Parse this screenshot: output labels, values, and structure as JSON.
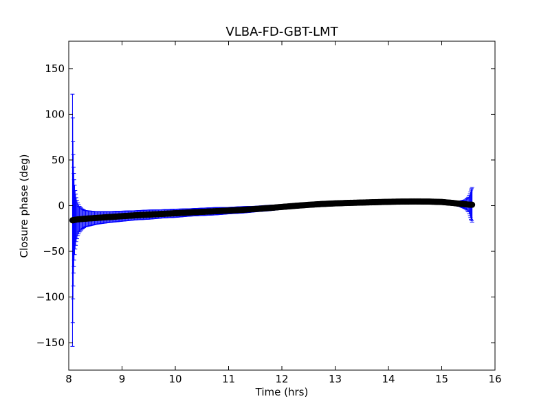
{
  "chart_data": {
    "type": "scatter",
    "title": "VLBA-FD-GBT-LMT",
    "xlabel": "Time (hrs)",
    "ylabel": "Closure phase (deg)",
    "xlim": [
      8,
      16
    ],
    "ylim": [
      -180,
      180
    ],
    "xticks": [
      8,
      9,
      10,
      11,
      12,
      13,
      14,
      15,
      16
    ],
    "yticks": [
      -150,
      -100,
      -50,
      0,
      50,
      100,
      150
    ],
    "ytick_labels": [
      "−150",
      "−100",
      "−50",
      "0",
      "50",
      "100",
      "150"
    ],
    "grid": false,
    "series": [
      {
        "marker_color": "#000000",
        "errorbar_color": "#0000ff",
        "x": [
          8.07,
          8.08,
          8.09,
          8.1,
          8.12,
          8.14,
          8.17,
          8.2,
          8.25,
          8.3,
          8.4,
          8.5,
          8.6,
          8.75,
          9.0,
          9.25,
          9.5,
          9.75,
          10.0,
          10.25,
          10.5,
          10.75,
          11.0,
          11.25,
          11.5,
          11.75,
          12.0,
          12.25,
          12.5,
          12.75,
          13.0,
          13.25,
          13.5,
          13.75,
          14.0,
          14.25,
          14.5,
          14.75,
          15.0,
          15.2,
          15.35,
          15.45,
          15.5,
          15.53,
          15.55,
          15.57
        ],
        "y": [
          -16,
          -16,
          -15.8,
          -15.6,
          -15.5,
          -15.3,
          -15,
          -14.8,
          -14.6,
          -14.3,
          -13.9,
          -13.5,
          -13.1,
          -12.5,
          -11.5,
          -10.6,
          -9.8,
          -9,
          -8.3,
          -7.5,
          -6.8,
          -6.1,
          -5.4,
          -4.6,
          -3.7,
          -2.6,
          -1.4,
          -0.2,
          0.9,
          1.8,
          2.5,
          3,
          3.4,
          3.8,
          4.2,
          4.5,
          4.6,
          4.5,
          4,
          3,
          2,
          1.5,
          1.2,
          1,
          1,
          1
        ],
        "err": [
          138,
          86,
          58,
          44,
          32,
          24,
          18,
          14,
          11,
          9,
          8,
          7,
          6.5,
          6,
          5.5,
          5,
          5,
          4.5,
          4.5,
          4,
          4,
          4,
          3.5,
          3.5,
          3,
          3,
          2.5,
          2.5,
          2,
          2,
          2,
          2,
          2,
          2,
          2,
          2,
          2,
          2,
          2,
          2,
          3,
          5,
          8,
          12,
          16,
          19
        ]
      }
    ]
  }
}
